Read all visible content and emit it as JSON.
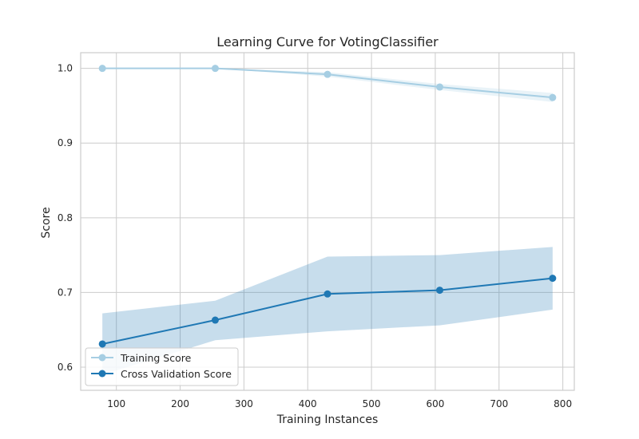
{
  "chart_data": {
    "type": "line",
    "title": "Learning Curve for VotingClassifier",
    "xlabel": "Training Instances",
    "ylabel": "Score",
    "xlim": [
      44,
      818
    ],
    "ylim": [
      0.569,
      1.021
    ],
    "xticks": [
      100,
      200,
      300,
      400,
      500,
      600,
      700,
      800
    ],
    "yticks": [
      0.6,
      0.7,
      0.8,
      0.9,
      1.0
    ],
    "xtick_labels": [
      "100",
      "200",
      "300",
      "400",
      "500",
      "600",
      "700",
      "800"
    ],
    "ytick_labels": [
      "0.6",
      "0.7",
      "0.8",
      "0.9",
      "1.0"
    ],
    "grid": true,
    "legend_position": "lower-left",
    "x": [
      78,
      255,
      431,
      607,
      784
    ],
    "series": [
      {
        "name": "Training Score",
        "color": "#a6cee3",
        "values": [
          1.0,
          1.0,
          0.992,
          0.975,
          0.961
        ],
        "band_upper": [
          1.0,
          1.0,
          0.995,
          0.979,
          0.967
        ],
        "band_lower": [
          1.0,
          1.0,
          0.989,
          0.971,
          0.955
        ]
      },
      {
        "name": "Cross Validation Score",
        "color": "#1f78b4",
        "values": [
          0.631,
          0.663,
          0.698,
          0.703,
          0.719
        ],
        "band_upper": [
          0.672,
          0.689,
          0.748,
          0.75,
          0.761
        ],
        "band_lower": [
          0.59,
          0.636,
          0.648,
          0.656,
          0.677
        ]
      }
    ]
  }
}
